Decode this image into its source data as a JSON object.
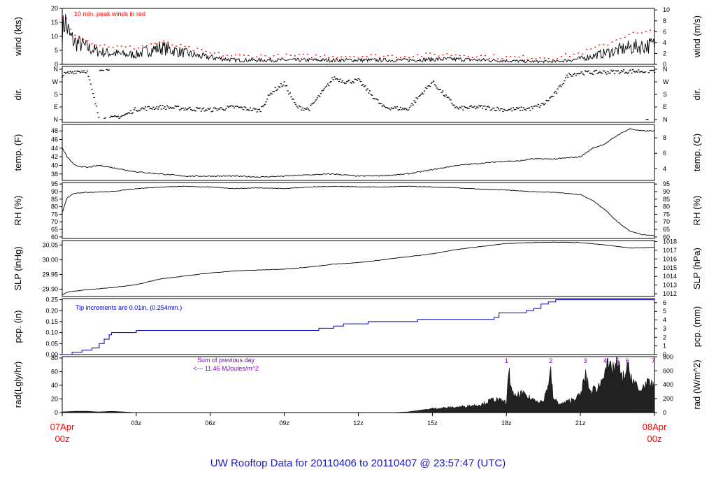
{
  "title": "UW Rooftop Data for 20110406  to  20110407 @ 23:57:47  (UTC)",
  "colors": {
    "title": "#1a1acc",
    "gust": "#ff0000",
    "precip": "#0000cc",
    "annotation": "#8800cc",
    "endlabel": "#ff0000"
  },
  "x_axis": {
    "start_label": [
      "07Apr",
      "00z"
    ],
    "end_label": [
      "08Apr",
      "00z"
    ],
    "ticks": [
      {
        "hour": 3,
        "label": "03z"
      },
      {
        "hour": 6,
        "label": "06z"
      },
      {
        "hour": 9,
        "label": "09z"
      },
      {
        "hour": 12,
        "label": "12z"
      },
      {
        "hour": 15,
        "label": "15z"
      },
      {
        "hour": 18,
        "label": "18z"
      },
      {
        "hour": 21,
        "label": "21z"
      }
    ]
  },
  "chart_data": [
    {
      "id": "wind",
      "type": "line",
      "ylabel": "wind (kts)",
      "ylabel_right": "wind (m/s)",
      "ylim": [
        0,
        20
      ],
      "yticks": [
        0,
        5,
        10,
        15,
        20
      ],
      "right_ylim": [
        0,
        10.29
      ],
      "right_yticks": [
        0,
        2,
        4,
        6,
        8,
        10
      ],
      "annotation": "10 min. peak winds in red",
      "x_hours": [
        0,
        0.1,
        0.3,
        0.5,
        0.8,
        1,
        1.5,
        2,
        2.5,
        3,
        3.5,
        4,
        4.5,
        5,
        5.5,
        6,
        7,
        8,
        9,
        10,
        11,
        12,
        13,
        14,
        15,
        16,
        17,
        18,
        19,
        20,
        21,
        21.5,
        22,
        22.5,
        23,
        23.5,
        24
      ],
      "series": [
        {
          "values": [
            11,
            16,
            10,
            8,
            7,
            6,
            4.5,
            4,
            3.5,
            3.5,
            5,
            6,
            5,
            4,
            3,
            2.5,
            1.5,
            1.5,
            1.5,
            1.5,
            1.5,
            1.5,
            1.5,
            1.5,
            1.8,
            1.8,
            1.5,
            1.3,
            1,
            1,
            2,
            3,
            4,
            5,
            6,
            6.5,
            7
          ]
        },
        {
          "name": "10 min. peak winds in red",
          "values": [
            16,
            18,
            14,
            11,
            10,
            8.5,
            7,
            6.5,
            6,
            6,
            7,
            8,
            7,
            6,
            5,
            4,
            3,
            3,
            3,
            3,
            3,
            3,
            3,
            3,
            3.5,
            3.5,
            3,
            2.5,
            2.5,
            2.5,
            4,
            5.5,
            7,
            9,
            11,
            11,
            12
          ]
        }
      ]
    },
    {
      "id": "dir",
      "type": "scatter",
      "ylabel": "dir.",
      "ylabel_right": "dir.",
      "yticks_labels": [
        "N",
        "E",
        "S",
        "W",
        "N"
      ],
      "ylim": [
        0,
        360
      ],
      "x_hours": [
        0,
        0.5,
        1,
        1.5,
        2,
        2.5,
        3,
        4,
        5,
        6,
        7,
        8,
        8.5,
        9,
        9.5,
        10,
        11,
        11.5,
        12,
        13,
        14,
        15,
        16,
        17,
        18,
        19,
        19.5,
        20,
        20.5,
        21,
        22,
        23,
        24
      ],
      "values": [
        320,
        345,
        350,
        5,
        10,
        30,
        75,
        90,
        80,
        70,
        90,
        65,
        200,
        260,
        90,
        75,
        300,
        270,
        280,
        90,
        75,
        270,
        80,
        90,
        70,
        80,
        110,
        190,
        320,
        335,
        340,
        345,
        350
      ]
    },
    {
      "id": "temp",
      "type": "line",
      "ylabel": "temp. (F)",
      "ylabel_right": "temp. (C)",
      "ylim": [
        36.5,
        49.5
      ],
      "yticks": [
        38,
        40,
        42,
        44,
        46,
        48
      ],
      "right_yticks": [
        4,
        6,
        8
      ],
      "x_hours": [
        0,
        0.2,
        0.5,
        1,
        1.5,
        2,
        3,
        4,
        5,
        6,
        7,
        8,
        9,
        10,
        11,
        12,
        13,
        14,
        15,
        16,
        17,
        18,
        18.5,
        19,
        20,
        21,
        21.5,
        22,
        22.5,
        23,
        23.5,
        24
      ],
      "series": [
        {
          "values": [
            44,
            42,
            40,
            39.5,
            40,
            39.5,
            38.5,
            38,
            37.5,
            37.5,
            37.5,
            37.3,
            37.5,
            37.8,
            38,
            37.5,
            37.6,
            38,
            39,
            40,
            40.5,
            41,
            41,
            41.5,
            41.5,
            42,
            44,
            45,
            47,
            48.5,
            48,
            48
          ]
        }
      ]
    },
    {
      "id": "rh",
      "type": "line",
      "ylabel": "RH (%)",
      "ylabel_right": "RH (%)",
      "ylim": [
        59,
        96
      ],
      "yticks": [
        60,
        65,
        70,
        75,
        80,
        85,
        90,
        95
      ],
      "right_yticks": [
        60,
        65,
        70,
        75,
        80,
        85,
        90,
        95
      ],
      "x_hours": [
        0,
        0.2,
        0.5,
        1,
        2,
        3,
        4,
        5,
        6,
        7,
        8,
        9,
        10,
        11,
        12,
        13,
        14,
        15,
        16,
        17,
        18,
        19,
        20,
        21,
        21.5,
        22,
        22.5,
        23,
        23.5,
        24
      ],
      "series": [
        {
          "values": [
            76,
            86,
            89,
            89.5,
            90,
            92,
            93,
            93.5,
            93,
            92,
            92.5,
            92,
            93,
            93.5,
            93.2,
            93,
            93.5,
            93,
            92.5,
            91.5,
            91,
            90,
            89.5,
            88,
            84,
            78,
            70,
            64,
            61.5,
            61
          ]
        }
      ]
    },
    {
      "id": "slp",
      "type": "line",
      "ylabel": "SLP (inHg)",
      "ylabel_right": "SLP (hPa)",
      "ylim": [
        29.875,
        30.065
      ],
      "yticks": [
        29.9,
        29.95,
        30.0,
        30.05
      ],
      "ytick_labels": [
        "29.90",
        "29.95",
        "30.00",
        "30.05"
      ],
      "right_yticks": [
        1012,
        1013,
        1014,
        1015,
        1016,
        1017,
        1018
      ],
      "x_hours": [
        0,
        0.2,
        0.5,
        1,
        2,
        3,
        4,
        5,
        6,
        7,
        8,
        9,
        10,
        11,
        12,
        13,
        14,
        15,
        16,
        17,
        18,
        19,
        20,
        21,
        22,
        22.5,
        23,
        23.5,
        24
      ],
      "series": [
        {
          "values": [
            29.88,
            29.89,
            29.893,
            29.898,
            29.905,
            29.915,
            29.935,
            29.945,
            29.955,
            29.962,
            29.965,
            29.968,
            29.975,
            29.985,
            29.99,
            30.0,
            30.01,
            30.02,
            30.035,
            30.045,
            30.055,
            30.058,
            30.06,
            30.058,
            30.05,
            30.045,
            30.04,
            30.04,
            30.042
          ]
        }
      ]
    },
    {
      "id": "pcp",
      "type": "line",
      "ylabel": "pcp. (in)",
      "ylabel_right": "pcp. (mm)",
      "ylim": [
        0,
        0.255
      ],
      "yticks": [
        0.0,
        0.05,
        0.1,
        0.15,
        0.2,
        0.25
      ],
      "ytick_labels": [
        "0.00",
        "0.05",
        "0.10",
        "0.15",
        "0.20",
        "0.25"
      ],
      "right_yticks": [
        0,
        1,
        2,
        3,
        4,
        5,
        6
      ],
      "annotation": "Tip increments are 0.01in. (0.254mm.)",
      "x_hours": [
        0,
        0.4,
        0.8,
        1.2,
        1.5,
        1.7,
        1.9,
        2.0,
        3.0,
        10.4,
        11.0,
        11.4,
        12.4,
        14.4,
        17.5,
        17.7,
        18.8,
        19.1,
        19.4,
        19.7,
        20.0,
        24
      ],
      "series": [
        {
          "name": "precip",
          "values": [
            0.0,
            0.01,
            0.02,
            0.03,
            0.05,
            0.07,
            0.09,
            0.1,
            0.11,
            0.12,
            0.13,
            0.14,
            0.15,
            0.16,
            0.17,
            0.19,
            0.2,
            0.21,
            0.23,
            0.24,
            0.25,
            0.25
          ]
        }
      ]
    },
    {
      "id": "rad",
      "type": "area",
      "ylabel": "rad(Lgly/hr)",
      "ylabel_right": "rad (W/m^2)",
      "ylim": [
        0,
        82
      ],
      "yticks": [
        0,
        20,
        40,
        60,
        80
      ],
      "right_yticks": [
        0,
        200,
        400,
        600,
        800
      ],
      "annotation": [
        "Sum of previous day",
        "<--- 11.46 MJoules/m^2"
      ],
      "hour_markers": [
        {
          "hour": 18,
          "label": "1"
        },
        {
          "hour": 19.8,
          "label": "2"
        },
        {
          "hour": 21.2,
          "label": "3"
        },
        {
          "hour": 22.0,
          "label": "4"
        },
        {
          "hour": 22.5,
          "label": "5"
        },
        {
          "hour": 22.9,
          "label": "6"
        },
        {
          "hour": 23.95,
          "label": "7"
        }
      ],
      "x_hours": [
        0,
        0.5,
        1,
        1.5,
        2,
        2.5,
        3,
        3.2,
        13.3,
        14,
        15,
        16,
        17,
        17.5,
        18,
        18.1,
        18.3,
        18.6,
        19,
        19.5,
        19.8,
        19.9,
        20.2,
        20.6,
        21,
        21.2,
        21.4,
        21.8,
        22.0,
        22.2,
        22.5,
        22.7,
        22.9,
        23.1,
        23.4,
        23.6,
        24
      ],
      "series": [
        {
          "values": [
            1,
            2,
            2,
            1,
            2,
            1,
            0,
            0,
            0,
            1,
            6,
            8,
            12,
            20,
            15,
            58,
            22,
            28,
            20,
            16,
            58,
            20,
            12,
            18,
            25,
            55,
            30,
            40,
            70,
            62,
            72,
            48,
            65,
            50,
            30,
            42,
            40
          ]
        }
      ]
    }
  ]
}
